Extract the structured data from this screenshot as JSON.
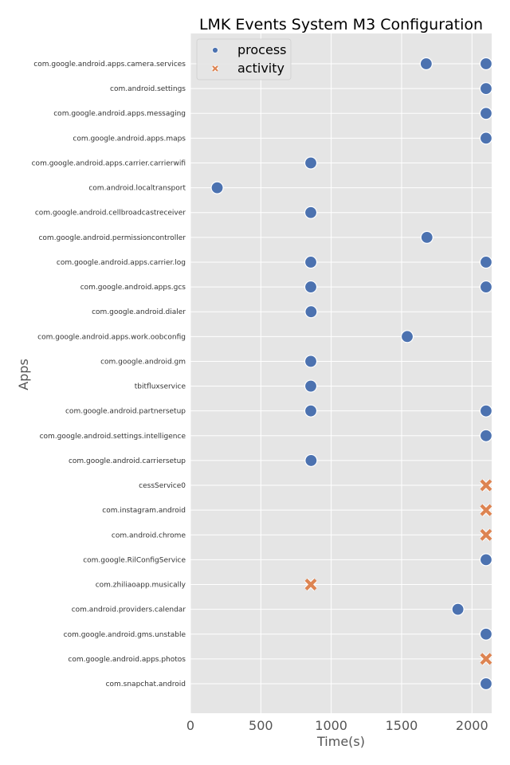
{
  "chart_data": {
    "type": "scatter",
    "title": "LMK Events System M3 Configuration",
    "xlabel": "Time(s)",
    "ylabel": "Apps",
    "xlim": [
      0,
      2140
    ],
    "xticks": [
      0,
      500,
      1000,
      1500,
      2000
    ],
    "grid": true,
    "legend_position": "top-left",
    "categories": [
      "com.google.android.apps.camera.services",
      "com.android.settings",
      "com.google.android.apps.messaging",
      "com.google.android.apps.maps",
      "com.google.android.apps.carrier.carrierwifi",
      "com.android.localtransport",
      "com.google.android.cellbroadcastreceiver",
      "com.google.android.permissioncontroller",
      "com.google.android.apps.carrier.log",
      "com.google.android.apps.gcs",
      "com.google.android.dialer",
      "com.google.android.apps.work.oobconfig",
      "com.google.android.gm",
      "tbitfluxservice",
      "com.google.android.partnersetup",
      "com.google.android.settings.intelligence",
      "com.google.android.carriersetup",
      "cessService0",
      "com.instagram.android",
      "com.android.chrome",
      "com.google.RilConfigService",
      "com.zhiliaoapp.musically",
      "com.android.providers.calendar",
      "com.google.android.gms.unstable",
      "com.google.android.apps.photos",
      "com.snapchat.android"
    ],
    "series": [
      {
        "name": "process",
        "color": "#4c72b0",
        "marker": "circle",
        "points": [
          {
            "app": "com.google.android.apps.camera.services",
            "x": 1675
          },
          {
            "app": "com.google.android.apps.camera.services",
            "x": 2100
          },
          {
            "app": "com.android.settings",
            "x": 2100
          },
          {
            "app": "com.google.android.apps.messaging",
            "x": 2100
          },
          {
            "app": "com.google.android.apps.maps",
            "x": 2100
          },
          {
            "app": "com.google.android.apps.carrier.carrierwifi",
            "x": 855
          },
          {
            "app": "com.android.localtransport",
            "x": 190
          },
          {
            "app": "com.google.android.cellbroadcastreceiver",
            "x": 855
          },
          {
            "app": "com.google.android.permissioncontroller",
            "x": 1680
          },
          {
            "app": "com.google.android.apps.carrier.log",
            "x": 855
          },
          {
            "app": "com.google.android.apps.carrier.log",
            "x": 2100
          },
          {
            "app": "com.google.android.apps.gcs",
            "x": 855
          },
          {
            "app": "com.google.android.apps.gcs",
            "x": 2100
          },
          {
            "app": "com.google.android.dialer",
            "x": 857
          },
          {
            "app": "com.google.android.apps.work.oobconfig",
            "x": 1540
          },
          {
            "app": "com.google.android.gm",
            "x": 855
          },
          {
            "app": "tbitfluxservice",
            "x": 855
          },
          {
            "app": "com.google.android.partnersetup",
            "x": 855
          },
          {
            "app": "com.google.android.partnersetup",
            "x": 2100
          },
          {
            "app": "com.google.android.settings.intelligence",
            "x": 2100
          },
          {
            "app": "com.google.android.carriersetup",
            "x": 857
          },
          {
            "app": "com.google.RilConfigService",
            "x": 2100
          },
          {
            "app": "com.android.providers.calendar",
            "x": 1900
          },
          {
            "app": "com.google.android.gms.unstable",
            "x": 2100
          },
          {
            "app": "com.snapchat.android",
            "x": 2100
          }
        ]
      },
      {
        "name": "activity",
        "color": "#dd8452",
        "marker": "x",
        "points": [
          {
            "app": "cessService0",
            "x": 2100
          },
          {
            "app": "com.instagram.android",
            "x": 2100
          },
          {
            "app": "com.android.chrome",
            "x": 2100
          },
          {
            "app": "com.zhiliaoapp.musically",
            "x": 855
          },
          {
            "app": "com.google.android.apps.photos",
            "x": 2100
          }
        ]
      }
    ]
  }
}
